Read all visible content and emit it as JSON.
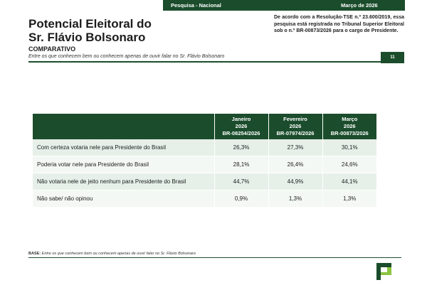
{
  "header": {
    "survey": "Pesquisa - Nacional",
    "date": "Março de 2026"
  },
  "title": {
    "line1": "Potencial Eleitoral do",
    "line2": "Sr. Flávio Bolsonaro"
  },
  "subtitle": "COMPARATIVO",
  "note": "Entre os que conhecem bem ou conhecem apenas de ouvir falar no Sr. Flávio Bolsonaro",
  "registration": "De acordo com a Resolução-TSE n.º 23.600/2019, essa pesquisa está registrada no Tribunal Superior Eleitoral sob o n.º BR-00873/2026 para o cargo de Presidente.",
  "page_number": "11",
  "table": {
    "columns": [
      {
        "month": "Janeiro",
        "year": "2026",
        "code": "BR-08254/2026"
      },
      {
        "month": "Fevereiro",
        "year": "2026",
        "code": "BR-07974/2026"
      },
      {
        "month": "Março",
        "year": "2026",
        "code": "BR-00873/2026"
      }
    ],
    "rows": [
      {
        "label": "Com certeza votaria nele para Presidente do Brasil",
        "values": [
          "26,3%",
          "27,3%",
          "30,1%"
        ]
      },
      {
        "label": "Poderia votar nele para Presidente do Brasil",
        "values": [
          "28,1%",
          "26,4%",
          "24,6%"
        ]
      },
      {
        "label": "Não votaria nele de jeito nenhum para Presidente do Brasil",
        "values": [
          "44,7%",
          "44,9%",
          "44,1%"
        ]
      },
      {
        "label": "Não sabe/ não opinou",
        "values": [
          "0,9%",
          "1,3%",
          "1,3%"
        ]
      }
    ]
  },
  "base": {
    "label": "BASE:",
    "text": "Entre os que conhecem bem ou conhecem apenas de ouvir falar no Sr. Flávio Bolsonaro"
  },
  "colors": {
    "brand": "#1b4d2c",
    "row_light": "#f3f8f4",
    "row_tint": "#e6f0e8",
    "logo_accent": "#8ac43f"
  },
  "icons": {
    "logo": "stylized-p-logo"
  }
}
